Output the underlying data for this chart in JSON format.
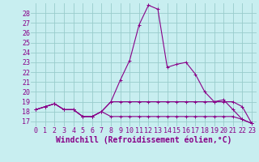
{
  "xlabel": "Windchill (Refroidissement éolien,°C)",
  "xlim": [
    -0.5,
    23.5
  ],
  "ylim": [
    16.5,
    29.0
  ],
  "yticks": [
    17,
    18,
    19,
    20,
    21,
    22,
    23,
    24,
    25,
    26,
    27,
    28
  ],
  "xticks": [
    0,
    1,
    2,
    3,
    4,
    5,
    6,
    7,
    8,
    9,
    10,
    11,
    12,
    13,
    14,
    15,
    16,
    17,
    18,
    19,
    20,
    21,
    22,
    23
  ],
  "bg_color": "#c8eef0",
  "grid_color": "#99cccc",
  "line_color": "#880088",
  "lines": [
    {
      "x": [
        0,
        1,
        2,
        3,
        4,
        5,
        6,
        7,
        8,
        9,
        10,
        11,
        12,
        13,
        14,
        15,
        16,
        17,
        18,
        19,
        20,
        21,
        22,
        23
      ],
      "y": [
        18.2,
        18.5,
        18.8,
        18.2,
        18.2,
        17.5,
        17.5,
        18.0,
        19.0,
        21.2,
        23.2,
        26.8,
        28.8,
        28.4,
        22.5,
        22.8,
        23.0,
        21.8,
        20.0,
        19.0,
        19.2,
        18.2,
        17.2,
        16.8
      ]
    },
    {
      "x": [
        0,
        1,
        2,
        3,
        4,
        5,
        6,
        7,
        8,
        9,
        10,
        11,
        12,
        13,
        14,
        15,
        16,
        17,
        18,
        19,
        20,
        21,
        22,
        23
      ],
      "y": [
        18.2,
        18.5,
        18.8,
        18.2,
        18.2,
        17.5,
        17.5,
        18.0,
        19.0,
        19.0,
        19.0,
        19.0,
        19.0,
        19.0,
        19.0,
        19.0,
        19.0,
        19.0,
        19.0,
        19.0,
        19.0,
        19.0,
        18.5,
        16.8
      ]
    },
    {
      "x": [
        0,
        1,
        2,
        3,
        4,
        5,
        6,
        7,
        8,
        9,
        10,
        11,
        12,
        13,
        14,
        15,
        16,
        17,
        18,
        19,
        20,
        21,
        22,
        23
      ],
      "y": [
        18.2,
        18.5,
        18.8,
        18.2,
        18.2,
        17.5,
        17.5,
        18.0,
        17.5,
        17.5,
        17.5,
        17.5,
        17.5,
        17.5,
        17.5,
        17.5,
        17.5,
        17.5,
        17.5,
        17.5,
        17.5,
        17.5,
        17.2,
        16.8
      ]
    }
  ],
  "tick_fontsize": 6.0,
  "xlabel_fontsize": 7.0
}
